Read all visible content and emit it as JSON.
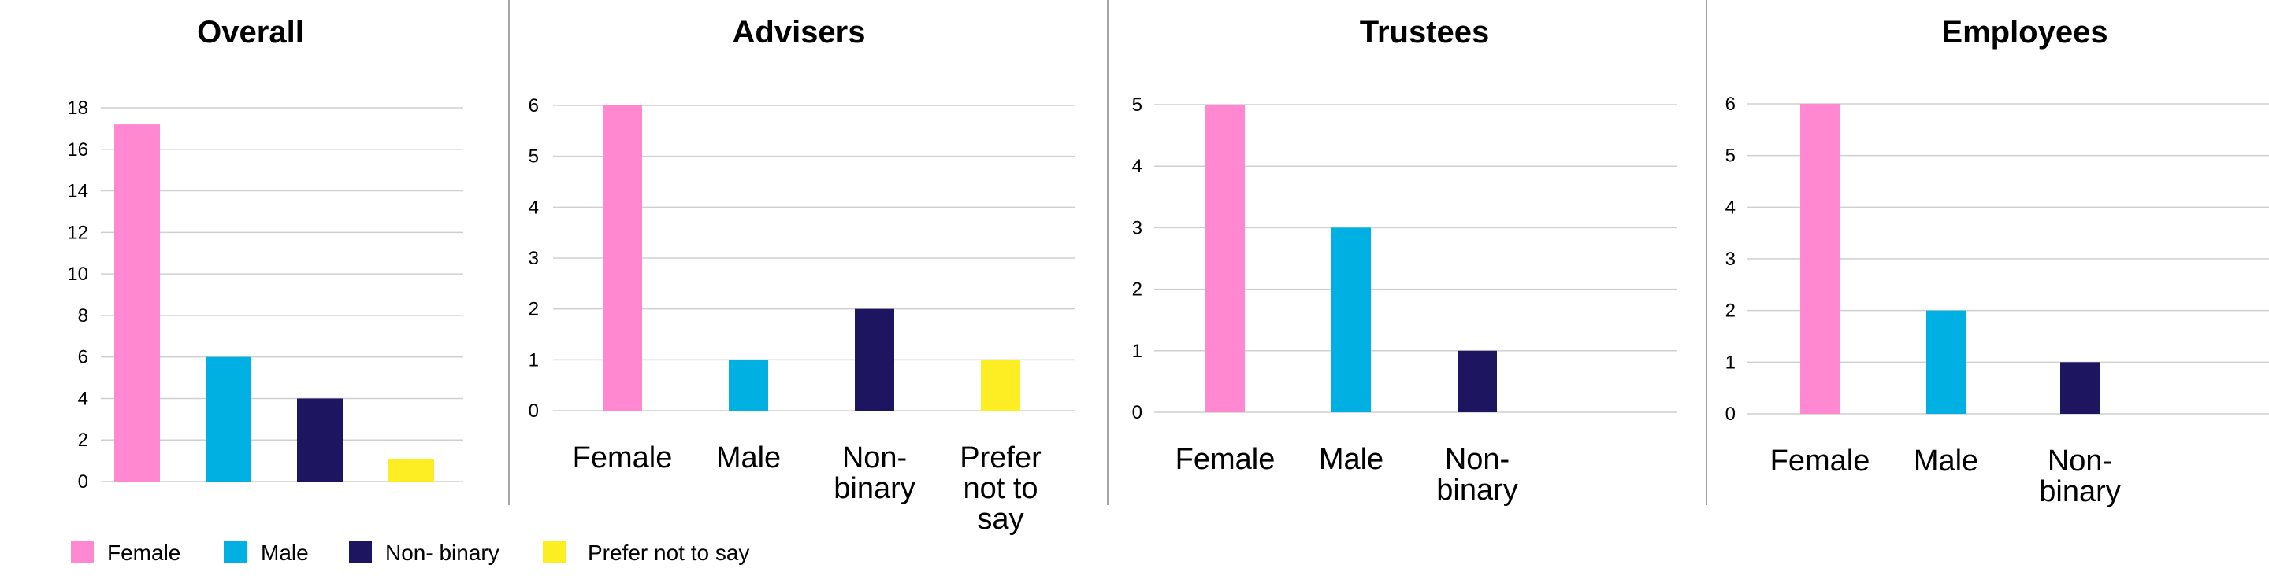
{
  "colors": {
    "Female": "#ff88d1",
    "Male": "#00b0e2",
    "Non- binary": "#1e1560",
    "Prefer not to say": "#fdee24",
    "grid": "#cfcfcf",
    "divider": "#a6a6a6"
  },
  "chart_data": [
    {
      "type": "bar",
      "title": "Overall",
      "categories": [
        "Female",
        "Male",
        "Non- binary",
        "Prefer not to say"
      ],
      "values": [
        17.2,
        6,
        4,
        1.1
      ],
      "ylim": [
        0,
        18
      ],
      "yticks": [
        0,
        2,
        4,
        6,
        8,
        10,
        12,
        14,
        16,
        18
      ],
      "show_xlabels": false,
      "grid": true
    },
    {
      "type": "bar",
      "title": "Advisers",
      "categories": [
        "Female",
        "Male",
        "Non-binary",
        "Prefer not to say"
      ],
      "values": [
        6,
        1,
        2,
        1
      ],
      "ylim": [
        0,
        6
      ],
      "yticks": [
        0,
        1,
        2,
        3,
        4,
        5,
        6
      ],
      "xlabel_lines": [
        [
          "Female"
        ],
        [
          "Male"
        ],
        [
          "Non-",
          "binary"
        ],
        [
          "Prefer",
          "not to",
          "say"
        ]
      ],
      "show_xlabels": true,
      "grid": true
    },
    {
      "type": "bar",
      "title": "Trustees",
      "categories": [
        "Female",
        "Male",
        "Non-binary"
      ],
      "values": [
        5,
        3,
        1
      ],
      "ylim": [
        0,
        5
      ],
      "yticks": [
        0,
        1,
        2,
        3,
        4,
        5
      ],
      "xlabel_lines": [
        [
          "Female"
        ],
        [
          "Male"
        ],
        [
          "Non-",
          "binary"
        ]
      ],
      "show_xlabels": true,
      "grid": true
    },
    {
      "type": "bar",
      "title": "Employees",
      "categories": [
        "Female",
        "Male",
        "Non-binary"
      ],
      "values": [
        6,
        2,
        1
      ],
      "ylim": [
        0,
        6
      ],
      "yticks": [
        0,
        1,
        2,
        3,
        4,
        5,
        6
      ],
      "xlabel_lines": [
        [
          "Female"
        ],
        [
          "Male"
        ],
        [
          "Non-",
          "binary"
        ]
      ],
      "show_xlabels": true,
      "grid": true
    }
  ],
  "legend": {
    "placement": "bottom-left",
    "items": [
      "Female",
      "Male",
      "Non- binary",
      "Prefer not to say"
    ]
  }
}
